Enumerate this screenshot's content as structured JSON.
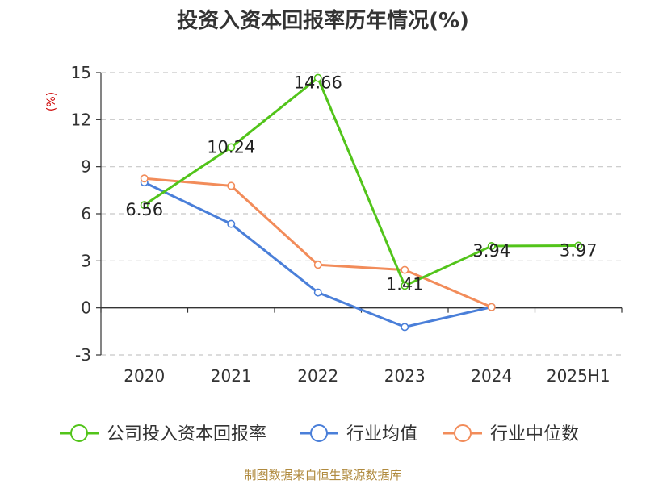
{
  "chart_data": {
    "type": "line",
    "title": "投资入资本回报率历年情况(%)",
    "ylabel": "(%)",
    "categories": [
      "2020",
      "2021",
      "2022",
      "2023",
      "2024",
      "2025H1"
    ],
    "ylim": [
      -3,
      15
    ],
    "yticks": [
      -3,
      0,
      3,
      6,
      9,
      12,
      15
    ],
    "grid": true,
    "legend_position": "bottom",
    "series": [
      {
        "name": "公司投入资本回报率",
        "color": "#52c41a",
        "values": [
          6.56,
          10.24,
          14.66,
          1.41,
          3.94,
          3.97
        ],
        "labels": [
          "6.56",
          "10.24",
          "14.66",
          "1.41",
          "3.94",
          "3.97"
        ]
      },
      {
        "name": "行业均值",
        "color": "#4a7fd9",
        "values": [
          8.0,
          5.35,
          0.98,
          -1.22,
          0.05,
          null
        ]
      },
      {
        "name": "行业中位数",
        "color": "#f28c5a",
        "values": [
          8.25,
          7.78,
          2.75,
          2.42,
          0.05,
          null
        ]
      }
    ]
  },
  "source": "制图数据来自恒生聚源数据库"
}
